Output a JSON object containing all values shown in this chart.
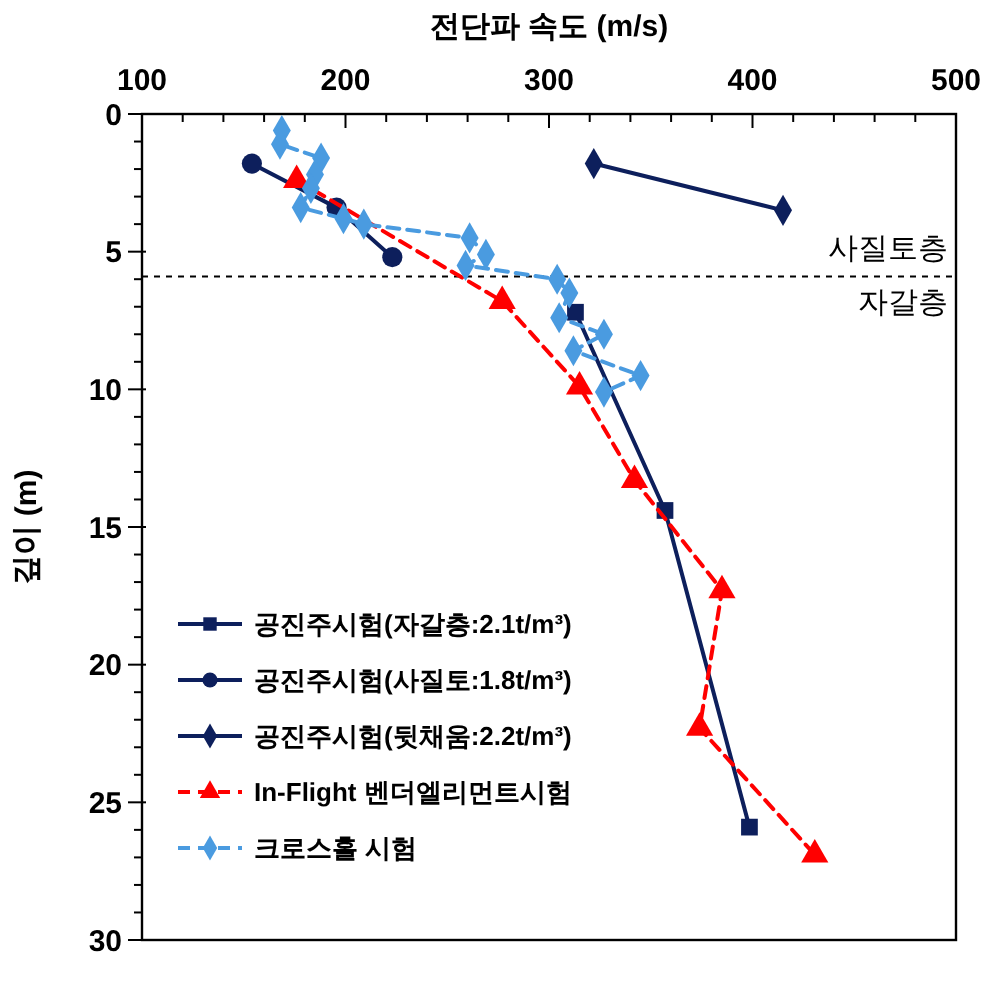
{
  "chart_data": {
    "type": "line",
    "xlabel": "전단파 속도 (m/s)",
    "ylabel": "깊이 (m)",
    "xlim": [
      100,
      500
    ],
    "xticks": [
      100,
      200,
      300,
      400,
      500
    ],
    "ylim": [
      30,
      0
    ],
    "yticks": [
      0,
      5,
      10,
      15,
      20,
      25,
      30
    ],
    "grid": false,
    "legend": "bottom left",
    "series": [
      {
        "name": "공진주시험(자갈층:2.1t/m³)",
        "color": "#0d1f5c",
        "marker": "square",
        "line_style": "solid",
        "x": [
          313,
          357,
          398.5
        ],
        "values": [
          7.2,
          14.4,
          25.9
        ]
      },
      {
        "name": "공진주시험(사질토:1.8t/m³)",
        "color": "#0d1f5c",
        "marker": "circle",
        "line_style": "solid",
        "x": [
          154,
          195.6,
          223
        ],
        "values": [
          1.8,
          3.4,
          5.2
        ]
      },
      {
        "name": "공진주시험(뒷채움:2.2t/m³)",
        "color": "#0d1f5c",
        "marker": "diamond",
        "line_style": "solid",
        "x": [
          322,
          415
        ],
        "values": [
          1.8,
          3.5
        ]
      },
      {
        "name": "In-Flight 벤더엘리먼트시험",
        "color": "#ff0000",
        "marker": "triangle",
        "line_style": "dashed",
        "x": [
          176,
          277,
          315,
          342,
          385,
          374,
          430.6
        ],
        "values": [
          2.4,
          6.8,
          9.9,
          13.3,
          17.3,
          22.3,
          26.9
        ]
      },
      {
        "name": "크로스홀 시험",
        "color": "#4a9be0",
        "marker": "diamond",
        "line_style": "dashed",
        "x": [
          168.7,
          167.8,
          188,
          185,
          183,
          178,
          199,
          209,
          261,
          269,
          259,
          304,
          310,
          305,
          327,
          312,
          345,
          327
        ],
        "values": [
          0.6,
          1.1,
          1.6,
          2.2,
          2.7,
          3.4,
          3.8,
          4.0,
          4.5,
          5.1,
          5.5,
          6.0,
          6.5,
          7.4,
          8.0,
          8.6,
          9.5,
          10.1
        ]
      }
    ],
    "ref_lines": [
      {
        "axis": "y",
        "value": 5.9,
        "color": "#000000",
        "line_style": "dotted"
      }
    ],
    "annotations": [
      "사질토층",
      "자갈층"
    ]
  }
}
